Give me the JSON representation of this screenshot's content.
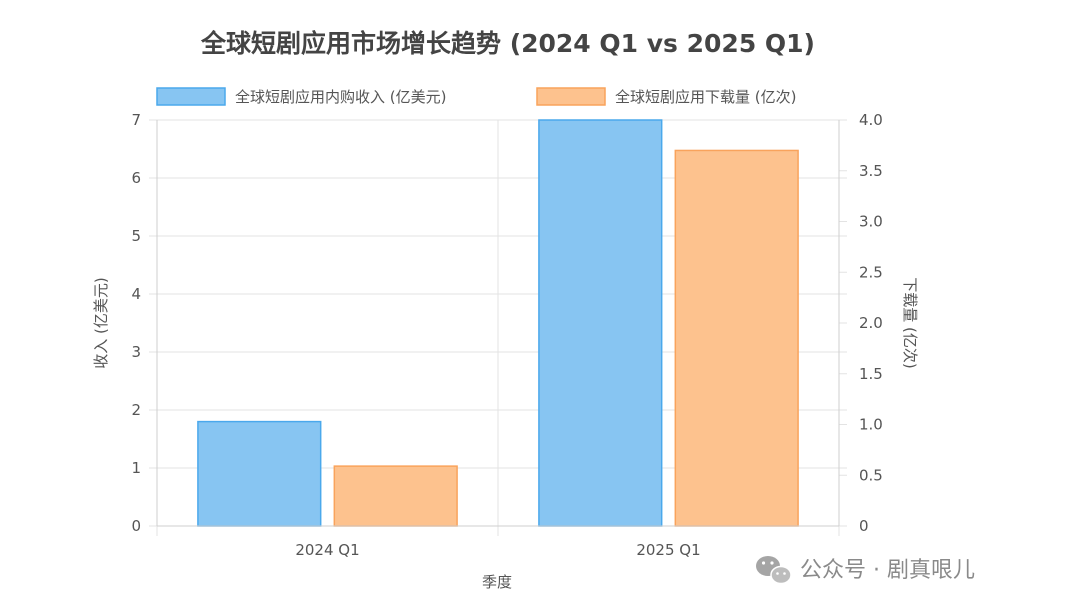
{
  "chart_data": {
    "type": "bar",
    "title": "全球短剧应用市场增长趋势 (2024 Q1 vs 2025 Q1)",
    "categories": [
      "2024 Q1",
      "2025 Q1"
    ],
    "series": [
      {
        "name": "全球短剧应用内购收入 (亿美元)",
        "values": [
          1.8,
          7.0
        ],
        "axis": "left",
        "color": "#87c5f2",
        "border_color": "#4aa8ec"
      },
      {
        "name": "全球短剧应用下载量 (亿次)",
        "values": [
          0.59,
          3.7
        ],
        "axis": "right",
        "color": "#fdc28e",
        "border_color": "#f9a35c"
      }
    ],
    "xlabel": "季度",
    "ylabel": "收入 (亿美元)",
    "y2label": "下载量 (亿次)",
    "ylim": [
      0,
      7
    ],
    "y2lim": [
      0,
      4
    ],
    "yticks": [
      "0",
      "1",
      "2",
      "3",
      "4",
      "5",
      "6",
      "7"
    ],
    "y2ticks": [
      "0",
      "0.5",
      "1.0",
      "1.5",
      "2.0",
      "2.5",
      "3.0",
      "3.5",
      "4.0"
    ],
    "grid": true,
    "legend_position": "top"
  },
  "watermark": {
    "text": "公众号 · 剧真哏儿",
    "icon": "wechat-icon",
    "color": "#8a8a8a"
  }
}
